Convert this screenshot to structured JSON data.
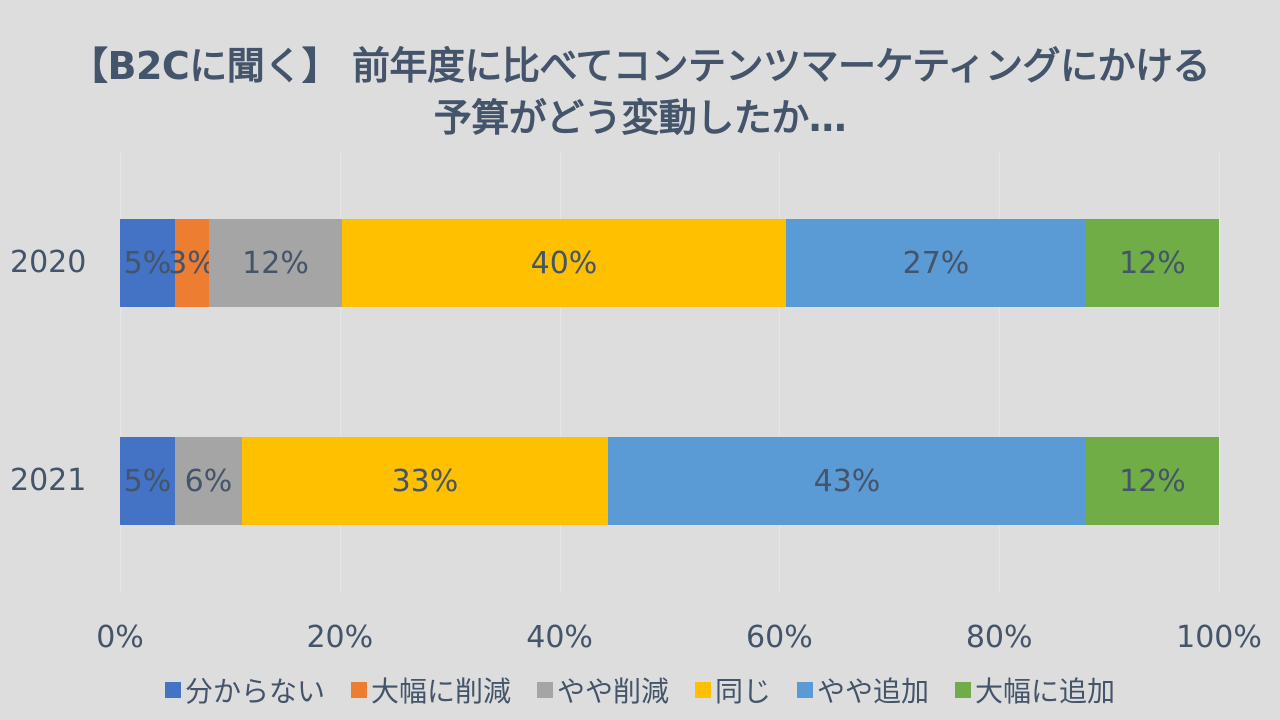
{
  "title": {
    "line1": "【B2Cに聞く】 前年度に比べてコンテンツマーケティングにかける",
    "line2": "予算がどう変動したか…"
  },
  "colors": {
    "分からない": "#4472c4",
    "大幅に削減": "#ed7d31",
    "やや削減": "#a5a5a5",
    "同じ": "#ffc000",
    "やや追加": "#5b9bd5",
    "大幅に追加": "#70ad47"
  },
  "axis": {
    "ticks": [
      "0%",
      "20%",
      "40%",
      "60%",
      "80%",
      "100%"
    ]
  },
  "legend": [
    {
      "label": "分からない",
      "color": "#4472c4"
    },
    {
      "label": "大幅に削減",
      "color": "#ed7d31"
    },
    {
      "label": "やや削減",
      "color": "#a5a5a5"
    },
    {
      "label": "同じ",
      "color": "#ffc000"
    },
    {
      "label": "やや追加",
      "color": "#5b9bd5"
    },
    {
      "label": "大幅に追加",
      "color": "#70ad47"
    }
  ],
  "rows": [
    {
      "category": "2020",
      "segments": [
        {
          "series": "分からない",
          "label": "5%",
          "width": 5.0
        },
        {
          "series": "大幅に削減",
          "label": "3%",
          "width": 3.1
        },
        {
          "series": "やや削減",
          "label": "12%",
          "width": 12.1
        },
        {
          "series": "同じ",
          "label": "40%",
          "width": 40.4
        },
        {
          "series": "やや追加",
          "label": "27%",
          "width": 27.3
        },
        {
          "series": "大幅に追加",
          "label": "12%",
          "width": 12.1
        }
      ]
    },
    {
      "category": "2021",
      "segments": [
        {
          "series": "分からない",
          "label": "5%",
          "width": 5.0
        },
        {
          "series": "やや削減",
          "label": "6%",
          "width": 6.1
        },
        {
          "series": "同じ",
          "label": "33%",
          "width": 33.3
        },
        {
          "series": "やや追加",
          "label": "43%",
          "width": 43.5
        },
        {
          "series": "大幅に追加",
          "label": "12%",
          "width": 12.1
        }
      ]
    }
  ],
  "chart_data": {
    "type": "bar",
    "orientation": "horizontal",
    "stacked": "percent",
    "title": "【B2Cに聞く】 前年度に比べてコンテンツマーケティングにかける予算がどう変動したか…",
    "categories": [
      "2020",
      "2021"
    ],
    "series": [
      {
        "name": "分からない",
        "values": [
          5,
          5
        ],
        "color": "#4472c4"
      },
      {
        "name": "大幅に削減",
        "values": [
          3,
          0
        ],
        "color": "#ed7d31"
      },
      {
        "name": "やや削減",
        "values": [
          12,
          6
        ],
        "color": "#a5a5a5"
      },
      {
        "name": "同じ",
        "values": [
          40,
          33
        ],
        "color": "#ffc000"
      },
      {
        "name": "やや追加",
        "values": [
          27,
          43
        ],
        "color": "#5b9bd5"
      },
      {
        "name": "大幅に追加",
        "values": [
          12,
          12
        ],
        "color": "#70ad47"
      }
    ],
    "xlabel": "",
    "ylabel": "",
    "xlim": [
      0,
      100
    ],
    "xticks": [
      "0%",
      "20%",
      "40%",
      "60%",
      "80%",
      "100%"
    ],
    "grid": true,
    "legend_position": "bottom",
    "data_labels": true
  }
}
